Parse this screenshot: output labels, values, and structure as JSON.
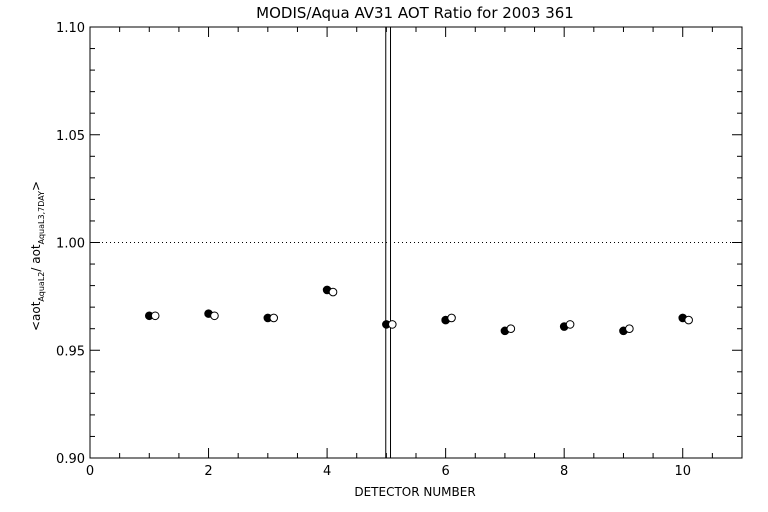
{
  "chart_data": {
    "type": "scatter",
    "title": "MODIS/Aqua AV31 AOT Ratio for 2003 361",
    "xlabel": "DETECTOR NUMBER",
    "ylabel": {
      "prefix": "<aot",
      "sub1": "AquaL2",
      "middle": "/ aot",
      "sub2": "AquaL3,7DAY",
      "suffix": ">"
    },
    "xlim": [
      0,
      11
    ],
    "ylim": [
      0.9,
      1.1
    ],
    "x_ticks": [
      0,
      2,
      4,
      6,
      8,
      10
    ],
    "x_tick_labels": [
      "0",
      "2",
      "4",
      "6",
      "8",
      "10"
    ],
    "y_ticks": [
      0.9,
      0.95,
      1.0,
      1.05,
      1.1
    ],
    "y_tick_labels": [
      "0.90",
      "0.95",
      "1.00",
      "1.05",
      "1.10"
    ],
    "x_minor_step": 0.5,
    "y_minor_step": 0.01,
    "reference_line": {
      "y": 1.0,
      "style": "dotted"
    },
    "vertical_lines": [
      4.99,
      5.07
    ],
    "grid": false,
    "series": [
      {
        "marker": "filled-circle",
        "x": [
          1,
          2,
          3,
          4,
          5,
          6,
          7,
          8,
          9,
          10
        ],
        "y": [
          0.966,
          0.967,
          0.965,
          0.978,
          0.962,
          0.964,
          0.959,
          0.961,
          0.959,
          0.965
        ]
      },
      {
        "marker": "open-circle",
        "x": [
          1.1,
          2.1,
          3.1,
          4.1,
          5.1,
          6.1,
          7.1,
          8.1,
          9.1,
          10.1
        ],
        "y": [
          0.966,
          0.966,
          0.965,
          0.977,
          0.962,
          0.965,
          0.96,
          0.962,
          0.96,
          0.964
        ]
      }
    ]
  }
}
